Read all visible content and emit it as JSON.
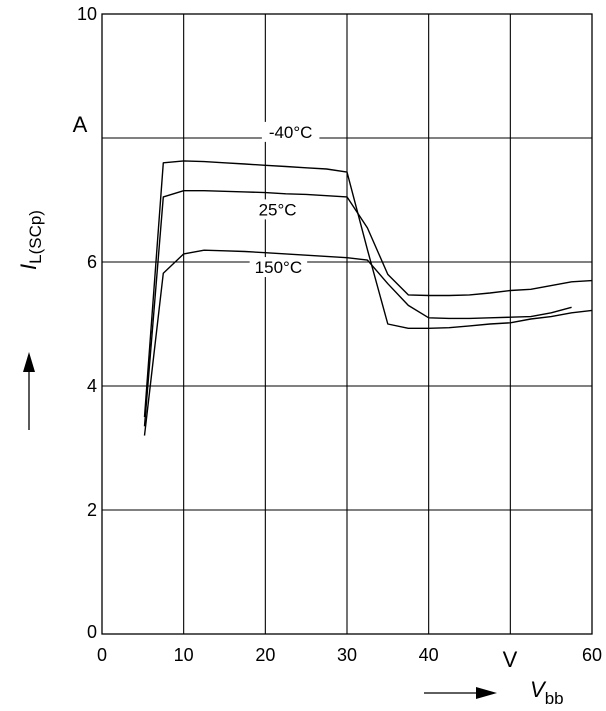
{
  "chart_data": {
    "type": "line",
    "title": "",
    "xlabel": "Vbb",
    "xlabel_main": "V",
    "xlabel_sub": "bb",
    "ylabel": "IL(SCp)",
    "ylabel_main": "I",
    "ylabel_sub": "L(SCp)",
    "x_unit": "V",
    "y_unit": "A",
    "xlim": [
      0,
      60
    ],
    "ylim": [
      0,
      10
    ],
    "x_ticks": [
      "0",
      "10",
      "20",
      "30",
      "40",
      "60"
    ],
    "x_tick_values": [
      0,
      10,
      20,
      30,
      40,
      60
    ],
    "y_ticks": [
      "0",
      "2",
      "4",
      "6",
      "10"
    ],
    "y_tick_values": [
      0,
      2,
      4,
      6,
      10
    ],
    "grid": true,
    "grid_x": [
      10,
      20,
      30,
      40,
      50
    ],
    "grid_y": [
      2,
      4,
      6,
      8
    ],
    "series": [
      {
        "name": "-40°C",
        "label_at": [
          23.1,
          8.05
        ],
        "x": [
          5.2,
          7.5,
          10,
          12.5,
          15,
          17.5,
          20,
          22.5,
          25,
          27.5,
          30,
          32.5,
          35,
          37.5,
          40,
          42.5,
          45,
          47.5,
          50,
          52.5,
          55,
          57.5,
          60
        ],
        "y": [
          3.5,
          7.6,
          7.63,
          7.62,
          7.6,
          7.58,
          7.56,
          7.54,
          7.52,
          7.5,
          7.45,
          6.2,
          5.0,
          4.93,
          4.93,
          4.94,
          4.97,
          5.0,
          5.02,
          5.08,
          5.12,
          5.18,
          5.22
        ]
      },
      {
        "name": "25°C",
        "label_at": [
          21.5,
          6.8
        ],
        "x": [
          5.2,
          7.5,
          10,
          12.5,
          15,
          17.5,
          20,
          22.5,
          25,
          27.5,
          30,
          32.5,
          35,
          37.5,
          40,
          42.5,
          45,
          47.5,
          50,
          52.5,
          55,
          57.5,
          60
        ],
        "y": [
          3.35,
          7.05,
          7.15,
          7.15,
          7.14,
          7.13,
          7.12,
          7.1,
          7.09,
          7.07,
          7.05,
          6.55,
          5.8,
          5.47,
          5.46,
          5.46,
          5.47,
          5.5,
          5.54,
          5.56,
          5.62,
          5.68,
          5.7
        ]
      },
      {
        "name": "150°C",
        "label_at": [
          21.6,
          5.87
        ],
        "x": [
          5.2,
          7.5,
          10,
          12.5,
          15,
          17.5,
          20,
          22.5,
          25,
          27.5,
          30,
          32.5,
          35,
          37.5,
          40,
          42.5,
          45,
          47.5,
          50,
          52.5,
          55,
          57.5
        ],
        "y": [
          3.2,
          5.82,
          6.13,
          6.19,
          6.18,
          6.17,
          6.15,
          6.13,
          6.11,
          6.09,
          6.07,
          6.03,
          5.65,
          5.3,
          5.1,
          5.09,
          5.09,
          5.1,
          5.11,
          5.12,
          5.18,
          5.27
        ]
      }
    ]
  }
}
